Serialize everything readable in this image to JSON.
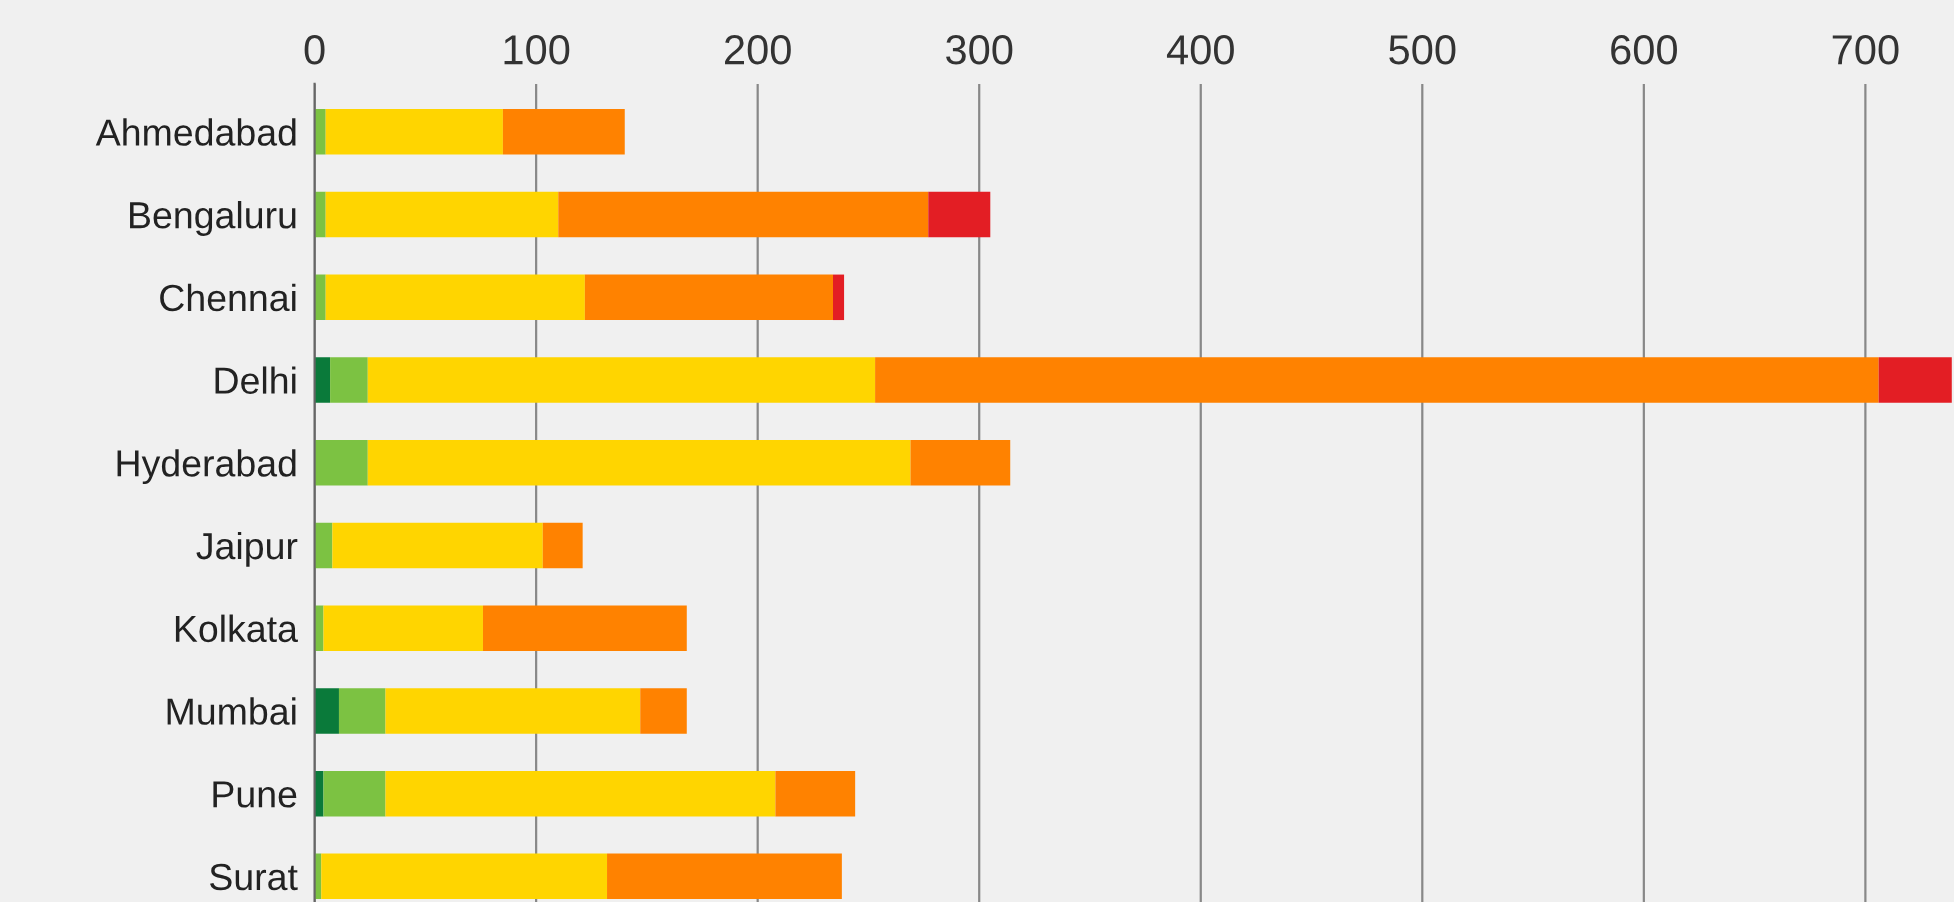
{
  "chart_data": {
    "type": "bar",
    "orientation": "horizontal",
    "stacked": true,
    "categories": [
      "Ahmedabad",
      "Bengaluru",
      "Chennai",
      "Delhi",
      "Hyderabad",
      "Jaipur",
      "Kolkata",
      "Mumbai",
      "Pune",
      "Surat"
    ],
    "series": [
      {
        "color": "#0a7a3a",
        "values": [
          0,
          0,
          0,
          7,
          0,
          0,
          0,
          11,
          4,
          0
        ]
      },
      {
        "color": "#7cc242",
        "values": [
          5,
          5,
          5,
          17,
          24,
          8,
          4,
          21,
          28,
          3
        ]
      },
      {
        "color": "#ffd500",
        "values": [
          80,
          105,
          117,
          229,
          245,
          95,
          72,
          115,
          176,
          129
        ]
      },
      {
        "color": "#ff8200",
        "values": [
          55,
          167,
          112,
          453,
          45,
          18,
          92,
          21,
          36,
          106
        ]
      },
      {
        "color": "#e31e24",
        "values": [
          0,
          28,
          5,
          33,
          0,
          0,
          0,
          0,
          0,
          0
        ]
      }
    ],
    "xlim": [
      0,
      740
    ],
    "xticks": [
      0,
      100,
      200,
      300,
      400,
      500,
      600,
      700
    ],
    "grid": "x"
  }
}
